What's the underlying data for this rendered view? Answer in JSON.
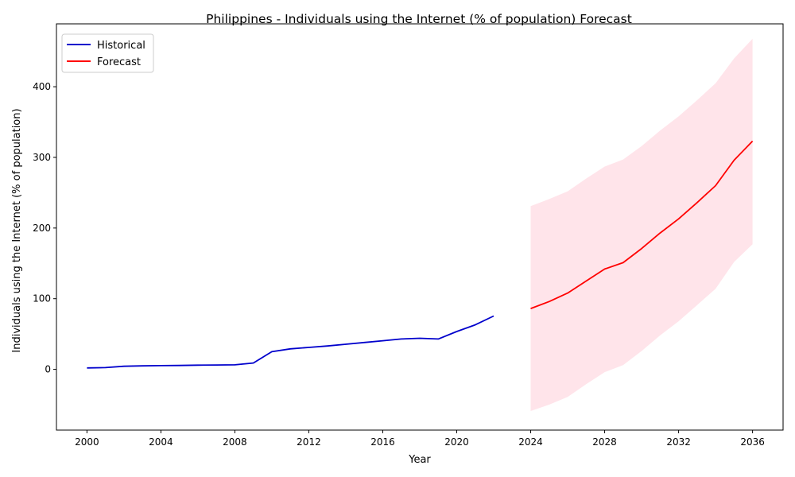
{
  "chart_data": {
    "type": "line",
    "title": "Philippines - Individuals using the Internet (% of population) Forecast",
    "xlabel": "Year",
    "ylabel": "Individuals using the Internet (% of population)",
    "xlim": [
      1998.35,
      2037.65
    ],
    "ylim": [
      -86,
      489
    ],
    "xticks": [
      2000,
      2004,
      2008,
      2012,
      2016,
      2020,
      2024,
      2028,
      2032,
      2036
    ],
    "yticks": [
      0,
      100,
      200,
      300,
      400
    ],
    "legend": {
      "placement": "top-left",
      "entries": [
        "Historical",
        "Forecast"
      ]
    },
    "series": [
      {
        "name": "Historical",
        "color": "#0000cc",
        "x": [
          2000,
          2001,
          2002,
          2003,
          2004,
          2005,
          2006,
          2007,
          2008,
          2009,
          2010,
          2011,
          2012,
          2013,
          2014,
          2015,
          2016,
          2017,
          2018,
          2019,
          2020,
          2021,
          2022
        ],
        "y": [
          2.0,
          2.5,
          4.4,
          4.9,
          5.3,
          5.5,
          5.9,
          6.2,
          6.4,
          9.0,
          25.0,
          29.0,
          31.0,
          33.0,
          35.5,
          38.0,
          40.5,
          43.0,
          44.0,
          43.0,
          53.5,
          63.0,
          75.5
        ]
      },
      {
        "name": "Forecast",
        "color": "#ff0000",
        "x": [
          2024,
          2025,
          2026,
          2027,
          2028,
          2029,
          2030,
          2031,
          2032,
          2033,
          2034,
          2035,
          2036
        ],
        "y": [
          86.0,
          96.0,
          108.0,
          125.0,
          142.0,
          151.0,
          171.0,
          193.0,
          213.0,
          236.0,
          260.0,
          296.0,
          323.0
        ],
        "lower": [
          -59.0,
          -50.0,
          -39.0,
          -21.0,
          -4.0,
          6.0,
          26.0,
          48.0,
          68.0,
          91.0,
          114.0,
          152.0,
          177.0
        ],
        "upper": [
          231.0,
          241.0,
          252.0,
          270.0,
          287.0,
          297.0,
          316.0,
          338.0,
          358.0,
          381.0,
          405.0,
          440.0,
          468.0
        ]
      }
    ],
    "band_color": "#ffe4ea"
  }
}
